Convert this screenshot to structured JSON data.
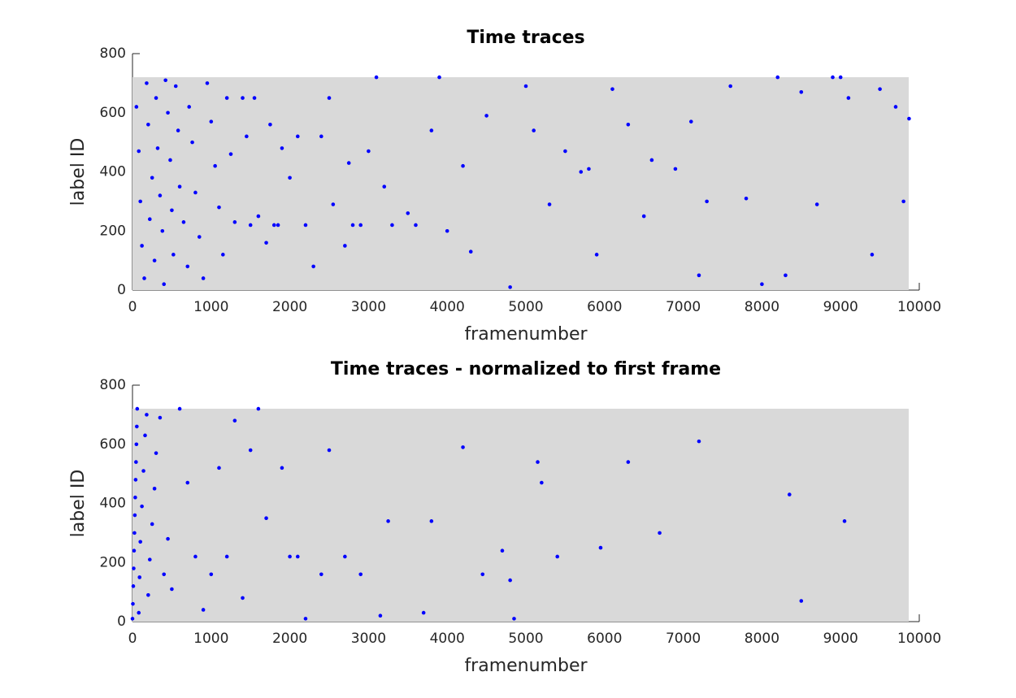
{
  "chart_data": [
    {
      "type": "scatter",
      "title": "Time traces",
      "xlabel": "framenumber",
      "ylabel": "label ID",
      "color": "#0000ff",
      "xlim": [
        0,
        10000
      ],
      "ylim": [
        0,
        800
      ],
      "xticks": [
        0,
        1000,
        2000,
        3000,
        4000,
        5000,
        6000,
        7000,
        8000,
        9000,
        10000
      ],
      "yticks": [
        0,
        200,
        400,
        600,
        800
      ],
      "x": [
        50,
        80,
        100,
        120,
        150,
        180,
        200,
        220,
        250,
        280,
        300,
        320,
        350,
        380,
        400,
        420,
        450,
        480,
        500,
        520,
        550,
        580,
        600,
        650,
        700,
        720,
        760,
        800,
        850,
        900,
        950,
        1000,
        1050,
        1100,
        1150,
        1200,
        1250,
        1300,
        1400,
        1450,
        1500,
        1550,
        1600,
        1700,
        1750,
        1800,
        1850,
        1900,
        2000,
        2100,
        2200,
        2300,
        2400,
        2500,
        2550,
        2700,
        2750,
        2800,
        2900,
        3000,
        3100,
        3200,
        3300,
        3500,
        3600,
        3800,
        3900,
        4000,
        4200,
        4300,
        4500,
        4800,
        5000,
        5100,
        5300,
        5500,
        5700,
        5800,
        5900,
        6100,
        6300,
        6500,
        6600,
        6900,
        7100,
        7200,
        7300,
        7600,
        7800,
        8000,
        8200,
        8300,
        8500,
        8700,
        8900,
        9000,
        9100,
        9400,
        9500,
        9700,
        9800,
        9870
      ],
      "values": [
        620,
        470,
        300,
        150,
        40,
        700,
        560,
        240,
        380,
        100,
        650,
        480,
        320,
        200,
        20,
        710,
        600,
        440,
        270,
        120,
        690,
        540,
        350,
        230,
        80,
        620,
        500,
        330,
        180,
        40,
        700,
        570,
        420,
        280,
        120,
        650,
        460,
        230,
        650,
        520,
        220,
        650,
        250,
        160,
        560,
        220,
        220,
        480,
        380,
        520,
        220,
        80,
        520,
        650,
        290,
        150,
        430,
        220,
        220,
        470,
        720,
        350,
        220,
        260,
        220,
        540,
        720,
        200,
        420,
        130,
        590,
        10,
        690,
        540,
        290,
        470,
        400,
        410,
        120,
        680,
        560,
        250,
        440,
        410,
        570,
        50,
        300,
        690,
        310,
        20,
        720,
        50,
        670,
        290,
        720,
        720,
        650,
        120,
        680,
        620,
        300,
        580
      ]
    },
    {
      "type": "scatter",
      "title": "Time traces - normalized to first frame",
      "xlabel": "framenumber",
      "ylabel": "label ID",
      "color": "#0000ff",
      "xlim": [
        0,
        10000
      ],
      "ylim": [
        0,
        800
      ],
      "xticks": [
        0,
        1000,
        2000,
        3000,
        4000,
        5000,
        6000,
        7000,
        8000,
        9000,
        10000
      ],
      "yticks": [
        0,
        200,
        400,
        600,
        800
      ],
      "x": [
        0,
        5,
        10,
        15,
        20,
        25,
        30,
        35,
        40,
        45,
        50,
        55,
        60,
        80,
        90,
        100,
        120,
        140,
        160,
        180,
        200,
        220,
        250,
        280,
        300,
        350,
        400,
        450,
        500,
        600,
        700,
        800,
        900,
        1000,
        1100,
        1200,
        1300,
        1400,
        1500,
        1600,
        1700,
        1900,
        2000,
        2100,
        2200,
        2400,
        2500,
        2700,
        2900,
        3150,
        3250,
        3700,
        3800,
        4200,
        4450,
        4700,
        4800,
        4850,
        5150,
        5200,
        5400,
        5950,
        6300,
        6700,
        7200,
        8350,
        8500,
        9050
      ],
      "values": [
        10,
        60,
        120,
        180,
        240,
        300,
        360,
        420,
        480,
        540,
        600,
        660,
        720,
        30,
        150,
        270,
        390,
        510,
        630,
        700,
        90,
        210,
        330,
        450,
        570,
        690,
        160,
        280,
        110,
        720,
        470,
        220,
        40,
        160,
        520,
        220,
        680,
        80,
        580,
        720,
        350,
        520,
        220,
        220,
        10,
        160,
        580,
        220,
        160,
        20,
        340,
        30,
        340,
        590,
        160,
        240,
        140,
        10,
        540,
        470,
        220,
        250,
        540,
        300,
        610,
        430,
        70,
        340
      ]
    }
  ]
}
